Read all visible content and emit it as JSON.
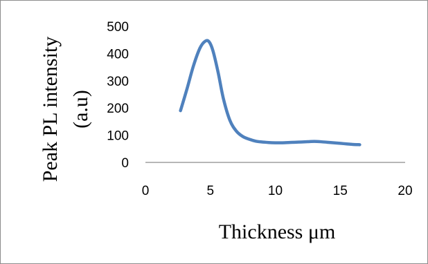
{
  "chart_data": {
    "type": "line",
    "xlabel": "Thickness μm",
    "ylabel_line1": "Peak  PL intensity",
    "ylabel_line2": "(a.u)",
    "xlim": [
      0,
      20
    ],
    "ylim": [
      0,
      500
    ],
    "x_ticks": [
      0,
      5,
      10,
      15,
      20
    ],
    "y_ticks": [
      0,
      100,
      200,
      300,
      400,
      500
    ],
    "grid": false,
    "legend": "none",
    "series": [
      {
        "color": "#4f81bd",
        "x": [
          2.7,
          3.2,
          3.7,
          4.2,
          4.6,
          4.9,
          5.2,
          5.6,
          6.0,
          6.5,
          7.0,
          7.5,
          8.0,
          8.5,
          9.0,
          9.5,
          10.0,
          10.5,
          11.0,
          11.5,
          12.0,
          12.5,
          13.0,
          13.5,
          14.0,
          14.5,
          15.0,
          15.5,
          16.0,
          16.5
        ],
        "y": [
          190,
          270,
          355,
          420,
          445,
          443,
          410,
          330,
          235,
          155,
          115,
          95,
          85,
          78,
          75,
          73,
          72,
          72,
          73,
          74,
          75,
          76,
          77,
          76,
          74,
          72,
          70,
          68,
          66,
          65
        ]
      }
    ]
  }
}
